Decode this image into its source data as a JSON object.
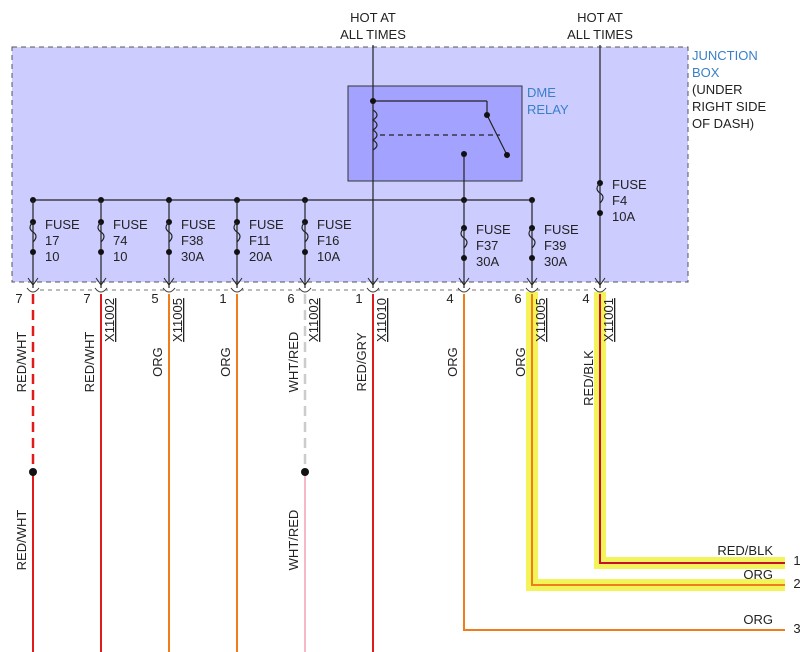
{
  "hot_labels": [
    [
      "HOT AT",
      "ALL TIMES"
    ],
    [
      "HOT AT",
      "ALL TIMES"
    ]
  ],
  "junction_box": {
    "title": [
      "JUNCTION",
      "BOX"
    ],
    "location": [
      "(UNDER",
      "RIGHT SIDE",
      "OF DASH)"
    ]
  },
  "relay": {
    "label": [
      "DME",
      "RELAY"
    ]
  },
  "fuses": [
    {
      "label": "FUSE",
      "id": "17",
      "rating": "10"
    },
    {
      "label": "FUSE",
      "id": "74",
      "rating": "10"
    },
    {
      "label": "FUSE",
      "id": "F38",
      "rating": "30A"
    },
    {
      "label": "FUSE",
      "id": "F11",
      "rating": "20A"
    },
    {
      "label": "FUSE",
      "id": "F16",
      "rating": "10A"
    },
    {
      "label": "FUSE",
      "id": "F37",
      "rating": "30A"
    },
    {
      "label": "FUSE",
      "id": "F39",
      "rating": "30A"
    },
    {
      "label": "FUSE",
      "id": "F4",
      "rating": "10A"
    }
  ],
  "pins": [
    {
      "pin": "7",
      "wire": "RED/WHT",
      "lower_wire": "RED/WHT"
    },
    {
      "pin": "7",
      "connector": "X11002",
      "wire": "RED/WHT"
    },
    {
      "pin": "5",
      "connector": "X11005",
      "wire": "ORG"
    },
    {
      "pin": "1",
      "wire": "ORG"
    },
    {
      "pin": "6",
      "connector": "X11002",
      "wire": "WHT/RED",
      "lower_wire": "WHT/RED"
    },
    {
      "pin": "1",
      "connector": "X11010",
      "wire": "RED/GRY"
    },
    {
      "pin": "4",
      "wire": "ORG"
    },
    {
      "pin": "6",
      "connector": "X11005",
      "wire": "ORG"
    },
    {
      "pin": "4",
      "connector": "X11001",
      "wire": "RED/BLK"
    }
  ],
  "outputs": [
    {
      "wire": "RED/BLK",
      "number": "1"
    },
    {
      "wire": "ORG",
      "number": "2"
    },
    {
      "wire": "ORG",
      "number": "3"
    }
  ]
}
